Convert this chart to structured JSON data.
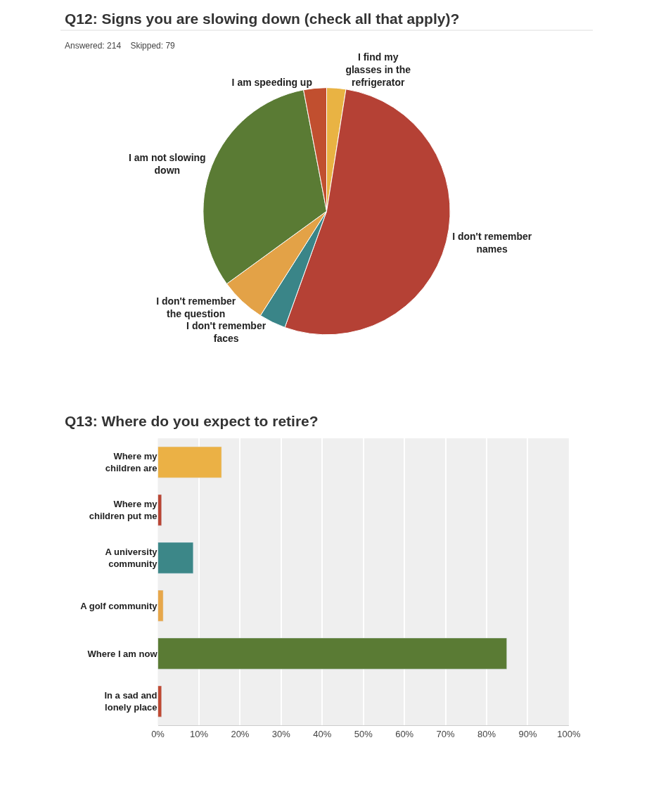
{
  "chart_data": [
    {
      "type": "pie",
      "title": "Q12: Signs you are slowing down (check all that apply)?",
      "subtitle": "Answered: 214    Skipped: 79",
      "categories": [
        "I find my glasses in the refrigerator",
        "I don't remember names",
        "I don't remember faces",
        "I don't remember the question",
        "I am not slowing down",
        "I am speeding up"
      ],
      "values": [
        2.5,
        53,
        3.5,
        6,
        32,
        3
      ],
      "colors": [
        "#e9b343",
        "#b54135",
        "#3a8588",
        "#e3a247",
        "#5a7b34",
        "#c14f2f"
      ]
    },
    {
      "type": "bar",
      "orientation": "horizontal",
      "title": "Q13: Where do you expect to retire?",
      "categories": [
        "Where my children are",
        "Where my children put me",
        "A university community",
        "A golf community",
        "Where I am now",
        "In a sad and lonely place"
      ],
      "values": [
        15.5,
        0.9,
        8.6,
        1.3,
        84.9,
        0.9
      ],
      "colors": [
        "#ebb145",
        "#b94634",
        "#3c8788",
        "#e7a74a",
        "#5a7b34",
        "#bf4a33"
      ],
      "xlim": [
        0,
        100
      ],
      "xticks": [
        {
          "value": 0,
          "label": "0%"
        },
        {
          "value": 10,
          "label": "10%"
        },
        {
          "value": 20,
          "label": "20%"
        },
        {
          "value": 30,
          "label": "30%"
        },
        {
          "value": 40,
          "label": "40%"
        },
        {
          "value": 50,
          "label": "50%"
        },
        {
          "value": 60,
          "label": "60%"
        },
        {
          "value": 70,
          "label": "70%"
        },
        {
          "value": 80,
          "label": "80%"
        },
        {
          "value": 90,
          "label": "90%"
        },
        {
          "value": 100,
          "label": "100%"
        }
      ],
      "grid": "x"
    }
  ]
}
